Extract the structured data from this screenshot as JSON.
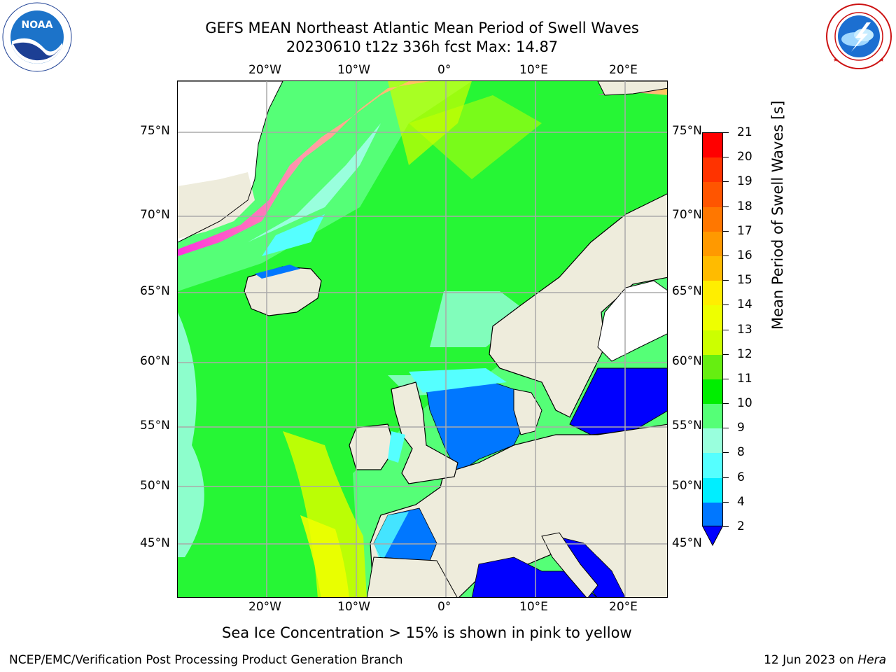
{
  "title": {
    "line1": "GEFS MEAN Northeast Atlantic Mean Period of Swell Waves",
    "line2": "20230610 t12z 336h fcst   Max: 14.87"
  },
  "logos": {
    "noaa": {
      "icon": "noaa-logo",
      "text": "NOAA",
      "ring_text": "NATIONAL OCEANIC AND ATMOSPHERIC ADMINISTRATION · U.S. DEPARTMENT OF COMMERCE"
    },
    "nws": {
      "icon": "nws-logo",
      "ring_text": "NATIONAL WEATHER SERVICE"
    }
  },
  "map": {
    "lon_labels_top": [
      "20°W",
      "10°W",
      "0°",
      "10°E",
      "20°E"
    ],
    "lon_labels_bottom": [
      "20°W",
      "10°W",
      "0°",
      "10°E",
      "20°E"
    ],
    "lat_labels_left": [
      "75°N",
      "70°N",
      "65°N",
      "60°N",
      "55°N",
      "50°N",
      "45°N"
    ],
    "lat_labels_right": [
      "75°N",
      "70°N",
      "65°N",
      "60°N",
      "55°N",
      "50°N",
      "45°N"
    ],
    "lon_range": [
      "30°W",
      "25°E"
    ],
    "lat_range": [
      "41°N",
      "78°N"
    ],
    "land_color": "#eeecdc",
    "grid": true
  },
  "colorbar": {
    "label": "Mean Period of Swell Waves [s]",
    "ticks": [
      "21",
      "20",
      "19",
      "18",
      "17",
      "16",
      "15",
      "14",
      "13",
      "12",
      "11",
      "10",
      "9",
      "8",
      "6",
      "4",
      "2"
    ],
    "colors": [
      "#ff0000",
      "#ff3300",
      "#ff5500",
      "#ff7700",
      "#ff9900",
      "#ffbb00",
      "#ffee00",
      "#eeff00",
      "#ccff00",
      "#66ee11",
      "#00ee00",
      "#55ff77",
      "#99ffdd",
      "#55ffff",
      "#00eeff",
      "#0077ff"
    ],
    "under_color": "#0000ff"
  },
  "note": "Sea Ice Concentration > 15% is shown in pink to yellow",
  "footer": {
    "left": "NCEP/EMC/Verification Post Processing Product Generation Branch",
    "right_date": "12 Jun 2023 on ",
    "right_host": "Hera"
  }
}
